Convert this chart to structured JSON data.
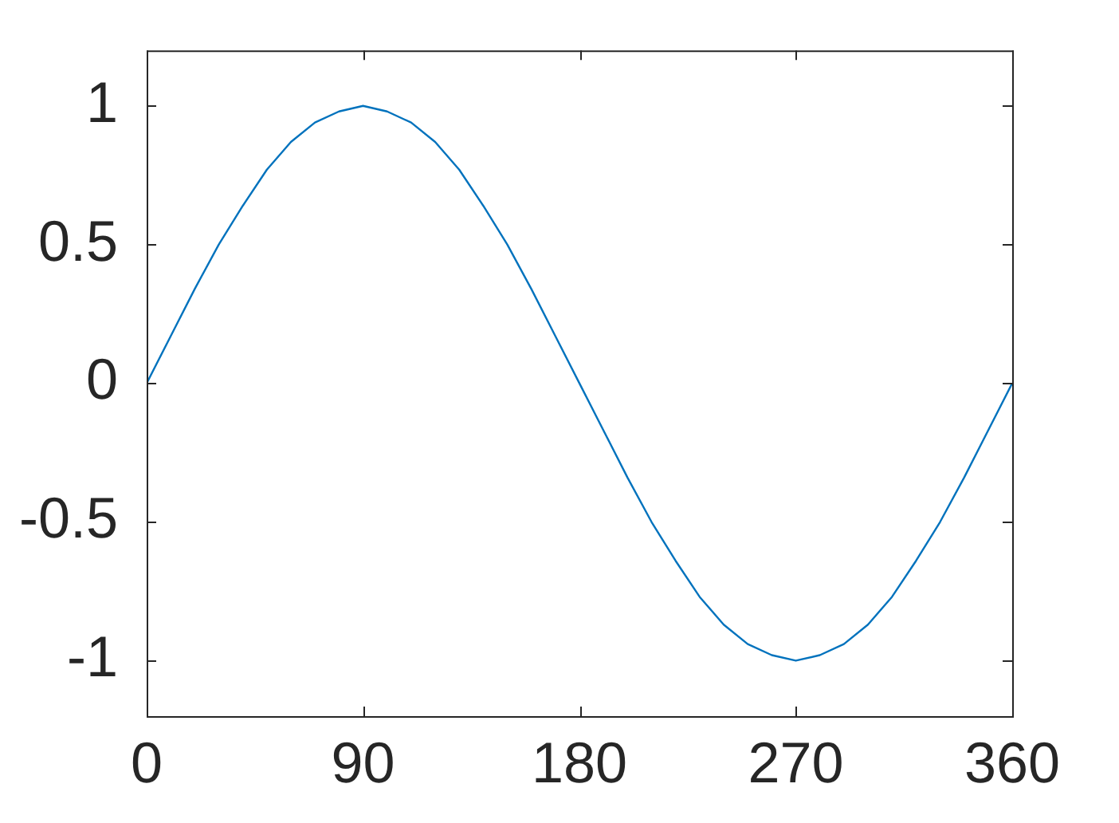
{
  "chart_data": {
    "type": "line",
    "x": [
      0,
      10,
      20,
      30,
      40,
      50,
      60,
      70,
      80,
      90,
      100,
      110,
      120,
      130,
      140,
      150,
      160,
      170,
      180,
      190,
      200,
      210,
      220,
      230,
      240,
      250,
      260,
      270,
      280,
      290,
      300,
      310,
      320,
      330,
      340,
      350,
      360
    ],
    "series": [
      {
        "color": "#0072bd",
        "values": [
          0,
          0.17,
          0.34,
          0.5,
          0.64,
          0.77,
          0.87,
          0.94,
          0.98,
          1,
          0.98,
          0.94,
          0.87,
          0.77,
          0.64,
          0.5,
          0.34,
          0.17,
          0,
          -0.17,
          -0.34,
          -0.5,
          -0.64,
          -0.77,
          -0.87,
          -0.94,
          -0.98,
          -1,
          -0.98,
          -0.94,
          -0.87,
          -0.77,
          -0.64,
          -0.5,
          -0.34,
          -0.17,
          0
        ]
      }
    ],
    "xlim": [
      0,
      360
    ],
    "xticks": [
      0,
      90,
      180,
      270,
      360
    ],
    "ylim": [
      -1.2,
      1.2
    ],
    "yticks": [
      -1,
      -0.5,
      0,
      0.5,
      1
    ],
    "grid": false,
    "legend": false,
    "marker": "none",
    "line_style": "solid"
  }
}
